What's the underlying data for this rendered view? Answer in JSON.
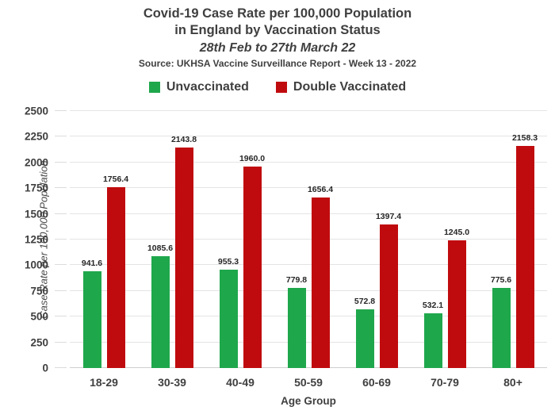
{
  "title": {
    "line1": "Covid-19 Case Rate per 100,000 Population",
    "line2": "in England by Vaccination Status",
    "subtitle": "28th Feb to 27th March 22",
    "source": "Source: UKHSA Vaccine Surveillance Report - Week 13 - 2022"
  },
  "legend": [
    {
      "label": "Unvaccinated",
      "color": "#1fa74c"
    },
    {
      "label": "Double Vaccinated",
      "color": "#c00b0e"
    }
  ],
  "chart_data": {
    "type": "bar",
    "categories": [
      "18-29",
      "30-39",
      "40-49",
      "50-59",
      "60-69",
      "70-79",
      "80+"
    ],
    "series": [
      {
        "name": "Unvaccinated",
        "color": "#1fa74c",
        "values": [
          941.6,
          1085.6,
          955.3,
          779.8,
          572.8,
          532.1,
          775.6
        ]
      },
      {
        "name": "Double Vaccinated",
        "color": "#c00b0e",
        "values": [
          1756.4,
          2143.8,
          1960.0,
          1656.4,
          1397.4,
          1245.0,
          2158.3
        ]
      }
    ],
    "title": "Covid-19 Case Rate per 100,000 Population in England by Vaccination Status",
    "xlabel": "Age Group",
    "ylabel": "Case Rate per 100,000 Population",
    "ylim": [
      0,
      2500
    ],
    "ytick_step": 250,
    "grid": true,
    "legend_position": "top",
    "value_labels": true,
    "value_label_decimals": 1
  }
}
